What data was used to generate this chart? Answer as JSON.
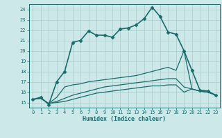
{
  "xlabel": "Humidex (Indice chaleur)",
  "background_color": "#cde8e8",
  "grid_color": "#aacccc",
  "line_color": "#1a6b6b",
  "xlim": [
    -0.5,
    23.5
  ],
  "ylim": [
    14.5,
    24.5
  ],
  "yticks": [
    15,
    16,
    17,
    18,
    19,
    20,
    21,
    22,
    23,
    24
  ],
  "xticks": [
    0,
    1,
    2,
    3,
    4,
    5,
    6,
    7,
    8,
    9,
    10,
    11,
    12,
    13,
    14,
    15,
    16,
    17,
    18,
    19,
    20,
    21,
    22,
    23
  ],
  "series": [
    {
      "x": [
        0,
        1,
        2,
        3,
        4,
        5,
        6,
        7,
        8,
        9,
        10,
        11,
        12,
        13,
        14,
        15,
        16,
        17,
        18,
        19,
        20,
        21,
        22,
        23
      ],
      "y": [
        15.3,
        15.5,
        14.8,
        17.0,
        18.0,
        20.8,
        21.0,
        21.9,
        21.5,
        21.5,
        21.3,
        22.1,
        22.2,
        22.5,
        23.1,
        24.2,
        23.3,
        21.8,
        21.6,
        20.0,
        18.1,
        16.2,
        16.1,
        15.7
      ],
      "marker": "D",
      "markersize": 2.5,
      "linewidth": 1.2
    },
    {
      "x": [
        0,
        1,
        2,
        3,
        4,
        5,
        6,
        7,
        8,
        9,
        10,
        11,
        12,
        13,
        14,
        15,
        16,
        17,
        18,
        19,
        20,
        21,
        22,
        23
      ],
      "y": [
        15.3,
        15.4,
        14.9,
        15.5,
        16.5,
        16.7,
        16.8,
        17.0,
        17.1,
        17.2,
        17.3,
        17.4,
        17.5,
        17.6,
        17.8,
        18.0,
        18.2,
        18.4,
        18.1,
        20.0,
        16.3,
        16.1,
        16.0,
        15.7
      ],
      "marker": null,
      "markersize": 0,
      "linewidth": 0.9
    },
    {
      "x": [
        0,
        1,
        2,
        3,
        4,
        5,
        6,
        7,
        8,
        9,
        10,
        11,
        12,
        13,
        14,
        15,
        16,
        17,
        18,
        19,
        20,
        21,
        22,
        23
      ],
      "y": [
        15.3,
        15.4,
        14.9,
        15.1,
        15.4,
        15.7,
        15.9,
        16.1,
        16.3,
        16.5,
        16.6,
        16.7,
        16.8,
        16.9,
        17.0,
        17.1,
        17.2,
        17.3,
        17.3,
        16.5,
        16.3,
        16.1,
        16.0,
        15.7
      ],
      "marker": null,
      "markersize": 0,
      "linewidth": 0.9
    },
    {
      "x": [
        0,
        1,
        2,
        3,
        4,
        5,
        6,
        7,
        8,
        9,
        10,
        11,
        12,
        13,
        14,
        15,
        16,
        17,
        18,
        19,
        20,
        21,
        22,
        23
      ],
      "y": [
        15.3,
        15.4,
        14.9,
        15.0,
        15.1,
        15.3,
        15.5,
        15.7,
        15.9,
        16.0,
        16.1,
        16.2,
        16.3,
        16.4,
        16.5,
        16.6,
        16.6,
        16.7,
        16.7,
        16.0,
        16.3,
        16.1,
        16.0,
        15.7
      ],
      "marker": null,
      "markersize": 0,
      "linewidth": 0.9
    }
  ],
  "xlabel_fontsize": 6.0,
  "tick_fontsize": 5.0
}
